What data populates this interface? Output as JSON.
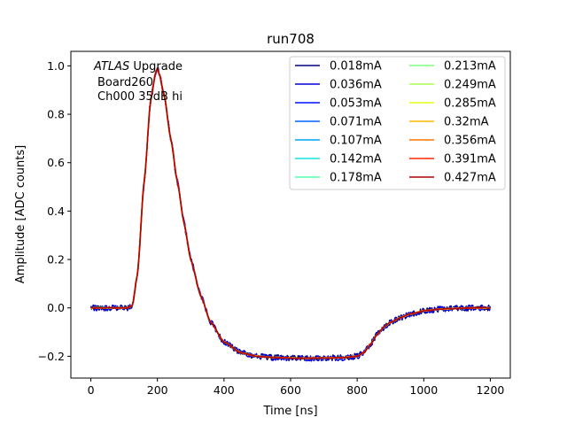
{
  "chart_data": {
    "type": "line",
    "title": "run708",
    "xlabel": "Time [ns]",
    "ylabel": "Amplitude [ADC counts]",
    "xlim": [
      -60,
      1260
    ],
    "ylim": [
      -0.29,
      1.06
    ],
    "xticks": [
      0,
      200,
      400,
      600,
      800,
      1000,
      1200
    ],
    "yticks": [
      -0.2,
      0.0,
      0.2,
      0.4,
      0.6,
      0.8,
      1.0
    ],
    "xtick_labels": [
      "0",
      "200",
      "400",
      "600",
      "800",
      "1000",
      "1200"
    ],
    "ytick_labels": [
      "−0.2",
      "0.0",
      "0.2",
      "0.4",
      "0.6",
      "0.8",
      "1.0"
    ],
    "grid": false,
    "legend_location": "top-right",
    "legend_columns": 2,
    "annotation": {
      "italic_part": "ATLAS",
      "rest_line1": " Upgrade",
      "line2": "Board260",
      "line3": "Ch000 35dB hi"
    },
    "waveform": {
      "x": [
        0,
        60,
        110,
        125,
        140,
        160,
        180,
        195,
        200,
        205,
        220,
        240,
        260,
        280,
        300,
        330,
        360,
        400,
        450,
        500,
        550,
        600,
        650,
        700,
        750,
        800,
        820,
        840,
        860,
        880,
        900,
        930,
        960,
        1000,
        1050,
        1100,
        1150,
        1200
      ],
      "y": [
        0.0,
        0.0,
        0.0,
        0.01,
        0.14,
        0.52,
        0.86,
        0.975,
        0.99,
        0.97,
        0.88,
        0.7,
        0.52,
        0.35,
        0.2,
        0.05,
        -0.06,
        -0.14,
        -0.185,
        -0.2,
        -0.205,
        -0.207,
        -0.208,
        -0.207,
        -0.206,
        -0.2,
        -0.185,
        -0.15,
        -0.11,
        -0.08,
        -0.06,
        -0.04,
        -0.025,
        -0.012,
        -0.005,
        -0.002,
        0.0,
        0.0
      ]
    },
    "noise_amplitude": 0.012,
    "series": [
      {
        "name": "0.018mA",
        "color": "#00007f",
        "scale": 1.0,
        "noisy": true
      },
      {
        "name": "0.036mA",
        "color": "#0000d9",
        "scale": 1.0,
        "noisy": true
      },
      {
        "name": "0.053mA",
        "color": "#0010ff",
        "scale": 1.0,
        "noisy": false
      },
      {
        "name": "0.071mA",
        "color": "#0060ff",
        "scale": 1.0,
        "noisy": false
      },
      {
        "name": "0.107mA",
        "color": "#00a4ff",
        "scale": 1.0,
        "noisy": false
      },
      {
        "name": "0.142mA",
        "color": "#12e6e4",
        "scale": 1.0,
        "noisy": false
      },
      {
        "name": "0.178mA",
        "color": "#4dffaa",
        "scale": 1.0,
        "noisy": false
      },
      {
        "name": "0.213mA",
        "color": "#7dff7a",
        "scale": 1.0,
        "noisy": false
      },
      {
        "name": "0.249mA",
        "color": "#aaff4d",
        "scale": 1.0,
        "noisy": false
      },
      {
        "name": "0.285mA",
        "color": "#e4ff13",
        "scale": 1.0,
        "noisy": false
      },
      {
        "name": "0.32mA",
        "color": "#ffb900",
        "scale": 1.0,
        "noisy": false
      },
      {
        "name": "0.356mA",
        "color": "#ff7300",
        "scale": 1.0,
        "noisy": false
      },
      {
        "name": "0.391mA",
        "color": "#ff2900",
        "scale": 1.0,
        "noisy": false
      },
      {
        "name": "0.427mA",
        "color": "#b20000",
        "scale": 1.0,
        "noisy": false
      }
    ]
  }
}
